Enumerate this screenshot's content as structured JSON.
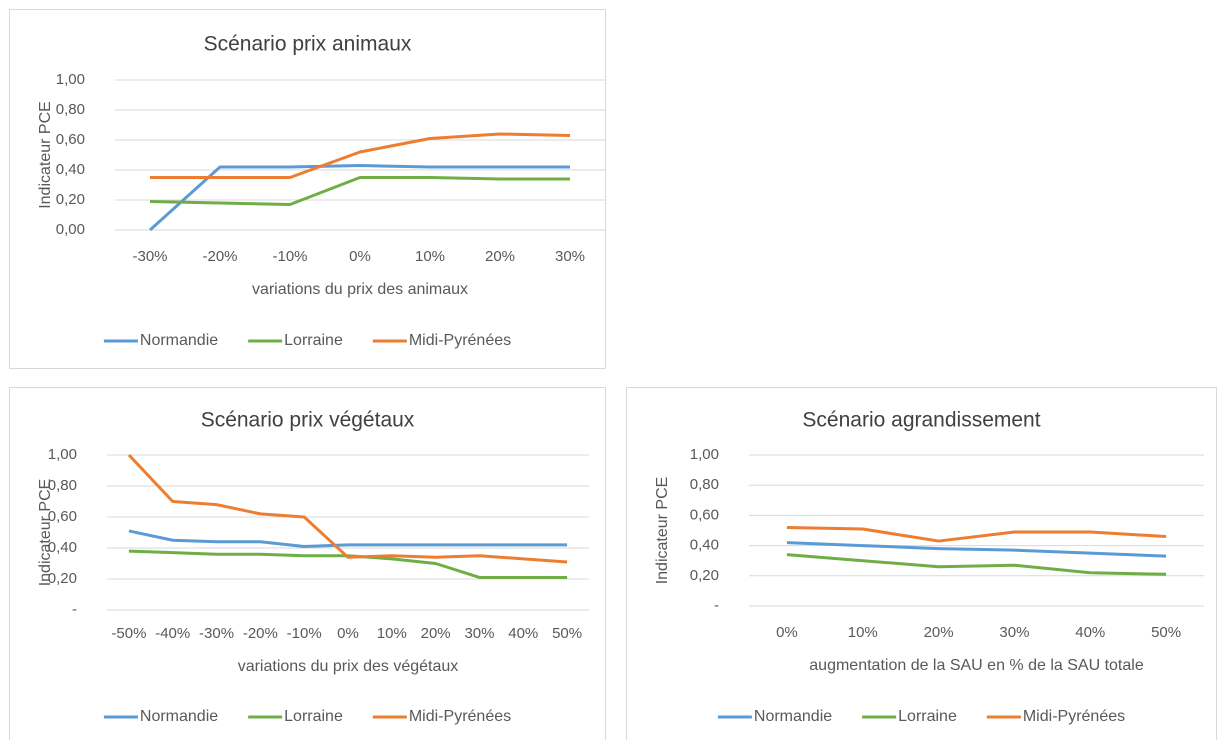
{
  "chart_data": [
    {
      "type": "line",
      "title": "Scénario prix animaux",
      "x_label": "variations du prix des animaux",
      "y_label": "Indicateur PCE",
      "categories": [
        "-30%",
        "-20%",
        "-10%",
        "0%",
        "10%",
        "20%",
        "30%"
      ],
      "ylim": [
        0,
        1
      ],
      "yticks": [
        {
          "value": 0,
          "label": "0,00"
        },
        {
          "value": 0.2,
          "label": "0,20"
        },
        {
          "value": 0.4,
          "label": "0,40"
        },
        {
          "value": 0.6,
          "label": "0,60"
        },
        {
          "value": 0.8,
          "label": "0,80"
        },
        {
          "value": 1,
          "label": "1,00"
        }
      ],
      "grid": true,
      "legend": "bottom",
      "series": [
        {
          "name": "Normandie",
          "color": "#5b9bd5",
          "values": [
            0,
            0.42,
            0.42,
            0.43,
            0.42,
            0.42,
            0.42
          ]
        },
        {
          "name": "Lorraine",
          "color": "#70ad47",
          "values": [
            0.19,
            0.18,
            0.17,
            0.35,
            0.35,
            0.34,
            0.34
          ]
        },
        {
          "name": "Midi-Pyrénées",
          "color": "#ed7d31",
          "values": [
            0.35,
            0.35,
            0.35,
            0.52,
            0.61,
            0.64,
            0.63
          ]
        }
      ]
    },
    {
      "type": "line",
      "title": "Scénario prix végétaux",
      "x_label": "variations du prix des végétaux",
      "y_label": "Indicateur PCE",
      "categories": [
        "-50%",
        "-40%",
        "-30%",
        "-20%",
        "-10%",
        "0%",
        "10%",
        "20%",
        "30%",
        "40%",
        "50%"
      ],
      "ylim": [
        0,
        1
      ],
      "yticks": [
        {
          "value": 0,
          "label": "-"
        },
        {
          "value": 0.2,
          "label": "0,20"
        },
        {
          "value": 0.4,
          "label": "0,40"
        },
        {
          "value": 0.6,
          "label": "0,60"
        },
        {
          "value": 0.8,
          "label": "0,80"
        },
        {
          "value": 1,
          "label": "1,00"
        }
      ],
      "grid": true,
      "legend": "bottom",
      "series": [
        {
          "name": "Normandie",
          "color": "#5b9bd5",
          "values": [
            0.51,
            0.45,
            0.44,
            0.44,
            0.41,
            0.42,
            0.42,
            0.42,
            0.42,
            0.42,
            0.42
          ]
        },
        {
          "name": "Lorraine",
          "color": "#70ad47",
          "values": [
            0.38,
            0.37,
            0.36,
            0.36,
            0.35,
            0.35,
            0.33,
            0.3,
            0.21,
            0.21,
            0.21
          ]
        },
        {
          "name": "Midi-Pyrénées",
          "color": "#ed7d31",
          "values": [
            1,
            0.7,
            0.68,
            0.62,
            0.6,
            0.34,
            0.35,
            0.34,
            0.35,
            0.33,
            0.31
          ]
        }
      ]
    },
    {
      "type": "line",
      "title": "Scénario agrandissement",
      "x_label": "augmentation de la SAU en % de la SAU totale",
      "y_label": "Indicateur PCE",
      "categories": [
        "0%",
        "10%",
        "20%",
        "30%",
        "40%",
        "50%"
      ],
      "ylim": [
        0,
        1
      ],
      "yticks": [
        {
          "value": 0,
          "label": "-"
        },
        {
          "value": 0.2,
          "label": "0,20"
        },
        {
          "value": 0.4,
          "label": "0,40"
        },
        {
          "value": 0.6,
          "label": "0,60"
        },
        {
          "value": 0.8,
          "label": "0,80"
        },
        {
          "value": 1,
          "label": "1,00"
        }
      ],
      "grid": true,
      "legend": "bottom",
      "series": [
        {
          "name": "Normandie",
          "color": "#5b9bd5",
          "values": [
            0.42,
            0.4,
            0.38,
            0.37,
            0.35,
            0.33
          ]
        },
        {
          "name": "Lorraine",
          "color": "#70ad47",
          "values": [
            0.34,
            0.3,
            0.26,
            0.27,
            0.22,
            0.21
          ]
        },
        {
          "name": "Midi-Pyrénées",
          "color": "#ed7d31",
          "values": [
            0.52,
            0.51,
            0.43,
            0.49,
            0.49,
            0.46
          ]
        }
      ]
    }
  ]
}
